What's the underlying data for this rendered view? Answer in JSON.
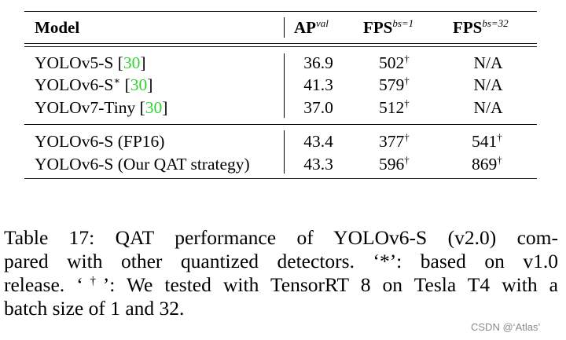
{
  "table": {
    "headers": {
      "model": "Model",
      "ap": "AP",
      "ap_sup": "val",
      "fps1": "FPS",
      "fps1_sup": "bs=1",
      "fps32": "FPS",
      "fps32_sup": "bs=32"
    },
    "groups": [
      {
        "rows": [
          {
            "model": "YOLOv5-S ",
            "model_mark": "",
            "cite": "30",
            "ap": "36.9",
            "fps1": "502",
            "fps1_mark": "†",
            "fps32": "N/A",
            "fps32_mark": ""
          },
          {
            "model": "YOLOv6-S",
            "model_mark": "∗",
            "cite": "30",
            "ap": "41.3",
            "fps1": "579",
            "fps1_mark": "†",
            "fps32": "N/A",
            "fps32_mark": ""
          },
          {
            "model": "YOLOv7-Tiny ",
            "model_mark": "",
            "cite": "30",
            "ap": "37.0",
            "fps1": "512",
            "fps1_mark": "†",
            "fps32": "N/A",
            "fps32_mark": ""
          }
        ]
      },
      {
        "rows": [
          {
            "model": "YOLOv6-S (FP16)",
            "model_mark": "",
            "cite": "",
            "ap": "43.4",
            "fps1": "377",
            "fps1_mark": "†",
            "fps32": "541",
            "fps32_mark": "†"
          },
          {
            "model": "YOLOv6-S (Our QAT strategy)",
            "model_mark": "",
            "cite": "",
            "ap": "43.3",
            "fps1": "596",
            "fps1_mark": "†",
            "fps32": "869",
            "fps32_mark": "†"
          }
        ]
      }
    ]
  },
  "caption": {
    "line1": "Table 17:  QAT performance of YOLOv6-S (v2.0) com-",
    "line2": "pared with other quantized detectors.  ‘*’:  based on v1.0",
    "line3_a": "release. ‘",
    "line3_sup": "†",
    "line3_b": "’: We tested with TensorRT 8 on Tesla T4 with a",
    "line4": "batch size of 1 and 32."
  },
  "watermark": "CSDN @‘Atlas’",
  "colors": {
    "citation": "#2fd32f",
    "watermark": "#8a8a8a"
  }
}
